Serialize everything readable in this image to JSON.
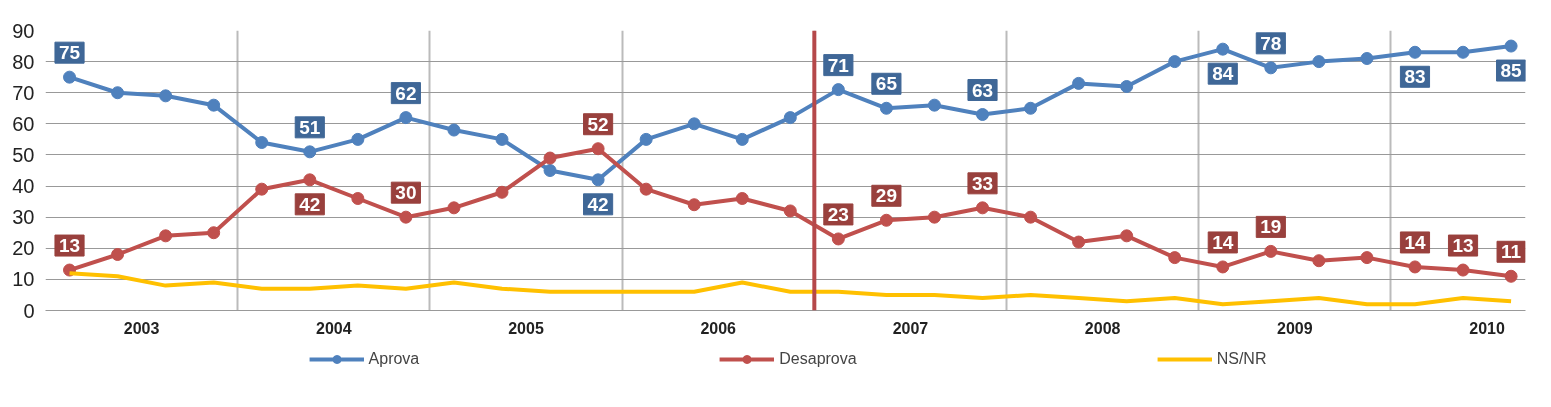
{
  "chart_data": {
    "type": "line",
    "x": [
      2003.125,
      2003.375,
      2003.625,
      2003.875,
      2004.125,
      2004.375,
      2004.625,
      2004.875,
      2005.125,
      2005.375,
      2005.625,
      2005.875,
      2006.125,
      2006.375,
      2006.625,
      2006.875,
      2007.125,
      2007.375,
      2007.625,
      2007.875,
      2008.125,
      2008.375,
      2008.625,
      2008.875,
      2009.125,
      2009.375,
      2009.625,
      2009.875,
      2010.125,
      2010.375,
      2010.625
    ],
    "series": [
      {
        "name": "Aprova",
        "color": "#4f81bd",
        "marker": "circle",
        "values": [
          75,
          70,
          69,
          66,
          54,
          51,
          55,
          62,
          58,
          55,
          45,
          42,
          55,
          60,
          55,
          62,
          71,
          65,
          66,
          63,
          65,
          73,
          72,
          80,
          84,
          78,
          80,
          81,
          83,
          83,
          85
        ],
        "value_labels": [
          "75",
          null,
          null,
          null,
          null,
          "51",
          null,
          "62",
          null,
          null,
          null,
          "42",
          null,
          null,
          null,
          null,
          "71",
          "65",
          null,
          "63",
          null,
          null,
          null,
          null,
          "84",
          "78",
          null,
          null,
          "83",
          null,
          "85"
        ]
      },
      {
        "name": "Desaprova",
        "color": "#c0504d",
        "marker": "circle",
        "values": [
          13,
          18,
          24,
          25,
          39,
          42,
          36,
          30,
          33,
          38,
          49,
          52,
          39,
          34,
          36,
          32,
          23,
          29,
          30,
          33,
          30,
          22,
          24,
          17,
          14,
          19,
          16,
          17,
          14,
          13,
          11
        ],
        "value_labels": [
          "13",
          null,
          null,
          null,
          null,
          "42",
          null,
          "30",
          null,
          null,
          null,
          "52",
          null,
          null,
          null,
          null,
          "23",
          "29",
          null,
          "33",
          null,
          null,
          null,
          null,
          "14",
          "19",
          null,
          null,
          "14",
          "13",
          "11"
        ]
      },
      {
        "name": "NS/NR",
        "color": "#ffc000",
        "marker": "none",
        "values": [
          12,
          11,
          8,
          9,
          7,
          7,
          8,
          7,
          9,
          7,
          6,
          6,
          6,
          6,
          9,
          6,
          6,
          5,
          5,
          4,
          5,
          4,
          3,
          4,
          2,
          3,
          4,
          2,
          2,
          4,
          3
        ]
      }
    ],
    "xlim": [
      2003,
      2010.7
    ],
    "xticks": [
      {
        "value": 2003.5,
        "label": "2003"
      },
      {
        "value": 2004,
        "label": null
      },
      {
        "value": 2004.5,
        "label": "2004"
      },
      {
        "value": 2005,
        "label": null
      },
      {
        "value": 2005.5,
        "label": "2005"
      },
      {
        "value": 2006,
        "label": null
      },
      {
        "value": 2006.5,
        "label": "2006"
      },
      {
        "value": 2007,
        "label": null
      },
      {
        "value": 2007.5,
        "label": "2007"
      },
      {
        "value": 2008,
        "label": null
      },
      {
        "value": 2008.5,
        "label": "2008"
      },
      {
        "value": 2009,
        "label": null
      },
      {
        "value": 2009.5,
        "label": "2009"
      },
      {
        "value": 2010,
        "label": null
      },
      {
        "value": 2010.5,
        "label": "2010"
      }
    ],
    "ylim": [
      0,
      90
    ],
    "yticks": [
      0,
      10,
      20,
      30,
      40,
      50,
      60,
      70,
      80,
      90
    ],
    "grid": true,
    "legend": "bottom",
    "line_style": "solid",
    "ref_lines": [
      {
        "axis": "x",
        "value": 2007,
        "label": null,
        "color": "#b5484a"
      }
    ]
  }
}
